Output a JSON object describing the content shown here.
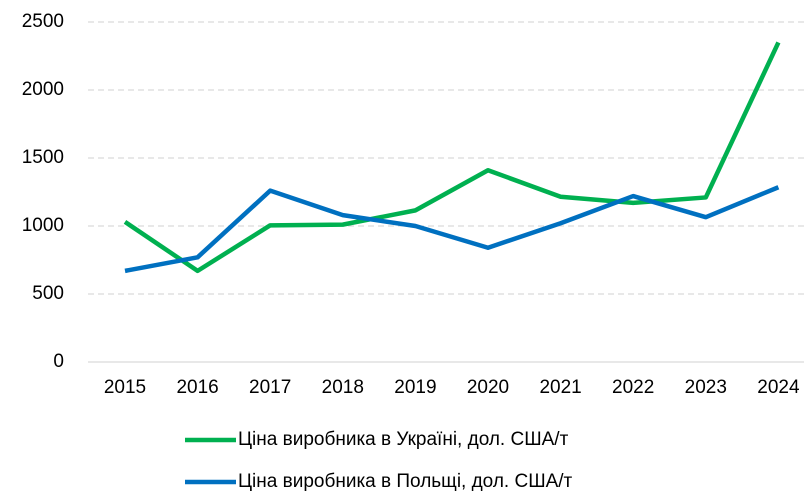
{
  "chart_data": {
    "type": "line",
    "categories": [
      "2015",
      "2016",
      "2017",
      "2018",
      "2019",
      "2020",
      "2021",
      "2022",
      "2023",
      "2024"
    ],
    "series": [
      {
        "name": "Ціна виробника в Україні, дол. США/т",
        "color": "#00b050",
        "values": [
          1030,
          670,
          1005,
          1010,
          1115,
          1410,
          1215,
          1170,
          1210,
          2350
        ]
      },
      {
        "name": "Ціна виробника в Польщі, дол. США/т",
        "color": "#0070c0",
        "values": [
          670,
          770,
          1260,
          1080,
          1000,
          840,
          1020,
          1220,
          1065,
          1285
        ]
      }
    ],
    "ylim": [
      0,
      2500
    ],
    "yticks": [
      0,
      500,
      1000,
      1500,
      2000,
      2500
    ],
    "grid": true,
    "legend": "bottom"
  }
}
